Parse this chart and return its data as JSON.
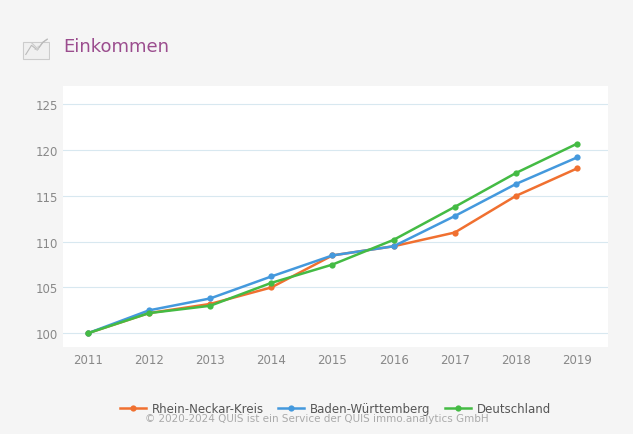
{
  "years": [
    2011,
    2012,
    2013,
    2014,
    2015,
    2016,
    2017,
    2018,
    2019
  ],
  "rhein_neckar": [
    100.0,
    102.2,
    103.2,
    105.0,
    108.5,
    109.5,
    111.0,
    115.0,
    118.0
  ],
  "baden_wuerttemberg": [
    100.0,
    102.5,
    103.8,
    106.2,
    108.5,
    109.5,
    112.8,
    116.3,
    119.2
  ],
  "deutschland": [
    100.0,
    102.2,
    103.0,
    105.5,
    107.5,
    110.2,
    113.8,
    117.5,
    120.7
  ],
  "color_rnk": "#f07030",
  "color_bw": "#4499dd",
  "color_de": "#44bb44",
  "title": "Einkommen",
  "title_color": "#9b4d8e",
  "ylim_min": 98.5,
  "ylim_max": 127,
  "yticks": [
    100,
    105,
    110,
    115,
    120,
    125
  ],
  "xlim_min": 2010.6,
  "xlim_max": 2019.5,
  "legend_labels": [
    "Rhein-Neckar-Kreis",
    "Baden-Württemberg",
    "Deutschland"
  ],
  "footer": "© 2020-2024 QUIS ist ein Service der QUIS immo.analytics GmbH",
  "bg_color": "#f5f5f5",
  "plot_bg": "#ffffff",
  "grid_color": "#d8e8f0",
  "marker_size": 4.5,
  "line_width": 1.8
}
